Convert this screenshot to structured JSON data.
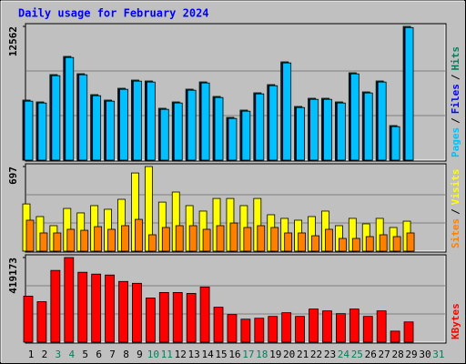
{
  "chart_data": [
    {
      "type": "bar",
      "title": "Daily usage for February 2024",
      "ylim": [
        0,
        12562
      ],
      "yticks": [
        12562
      ],
      "legend_separator": "/",
      "series": [
        {
          "name": "Hits",
          "color": "#00805c",
          "values": [
            5640,
            5469,
            8033,
            9742,
            8118,
            6153,
            5640,
            6751,
            7520,
            7435,
            4871,
            5469,
            6666,
            7349,
            5982,
            4016,
            4700,
            6324,
            7093,
            9230,
            5042,
            5811,
            5811,
            5469,
            8204,
            6409,
            7435,
            3247,
            12562,
            null,
            null
          ]
        },
        {
          "name": "Files",
          "color": "#0000ff",
          "values": [
            5540,
            5369,
            7933,
            9642,
            8018,
            6053,
            5540,
            6651,
            7420,
            7335,
            4771,
            5369,
            6566,
            7249,
            5882,
            3916,
            4600,
            6224,
            6993,
            9130,
            4942,
            5711,
            5711,
            5369,
            8104,
            6309,
            7335,
            3147,
            12450,
            null,
            null
          ]
        },
        {
          "name": "Pages",
          "color": "#00c0ff",
          "values": [
            5540,
            5369,
            7933,
            9642,
            8018,
            6053,
            5540,
            6651,
            7420,
            7335,
            4771,
            5369,
            6566,
            7249,
            5882,
            3916,
            4600,
            6224,
            6993,
            9130,
            4942,
            5711,
            5711,
            5369,
            8104,
            6309,
            7335,
            3147,
            12450,
            null,
            null
          ]
        }
      ]
    },
    {
      "type": "bar",
      "ylim": [
        0,
        697
      ],
      "yticks": [
        697
      ],
      "legend_separator": "/",
      "series": [
        {
          "name": "Visits",
          "color": "#ffff00",
          "values": [
            389,
            285,
            210,
            352,
            315,
            375,
            345,
            427,
            644,
            697,
            404,
            487,
            375,
            330,
            434,
            434,
            375,
            434,
            300,
            270,
            255,
            285,
            330,
            210,
            270,
            225,
            270,
            195,
            247,
            null,
            null
          ]
        },
        {
          "name": "Sites",
          "color": "#ff8000",
          "values": [
            255,
            150,
            150,
            180,
            172,
            202,
            180,
            210,
            262,
            135,
            195,
            210,
            210,
            180,
            210,
            232,
            195,
            210,
            195,
            150,
            150,
            127,
            180,
            105,
            105,
            120,
            135,
            120,
            150,
            null,
            null
          ]
        }
      ]
    },
    {
      "type": "bar",
      "ylim": [
        0,
        419173
      ],
      "yticks": [
        419173
      ],
      "categories": [
        "1",
        "2",
        "3",
        "4",
        "5",
        "6",
        "7",
        "8",
        "9",
        "10",
        "11",
        "12",
        "13",
        "14",
        "15",
        "16",
        "17",
        "18",
        "19",
        "20",
        "21",
        "22",
        "23",
        "24",
        "25",
        "26",
        "27",
        "28",
        "29",
        "30",
        "31"
      ],
      "category_colors": [
        "#000000",
        "#000000",
        "#00805c",
        "#00805c",
        "#000000",
        "#000000",
        "#000000",
        "#000000",
        "#000000",
        "#00805c",
        "#00805c",
        "#000000",
        "#000000",
        "#000000",
        "#000000",
        "#000000",
        "#00805c",
        "#00805c",
        "#000000",
        "#000000",
        "#000000",
        "#000000",
        "#000000",
        "#00805c",
        "#00805c",
        "#000000",
        "#000000",
        "#000000",
        "#000000",
        "#000000",
        "#00805c"
      ],
      "series": [
        {
          "name": "KBytes",
          "color": "#ff0000",
          "values": [
            227800,
            200464,
            355368,
            419173,
            346256,
            337144,
            332588,
            300696,
            291584,
            218688,
            246024,
            246024,
            241468,
            273360,
            173128,
            136680,
            113900,
            118456,
            127568,
            145792,
            127568,
            164016,
            154904,
            141236,
            164016,
            127568,
            154904,
            54672,
            100232,
            null,
            null
          ]
        }
      ]
    }
  ]
}
